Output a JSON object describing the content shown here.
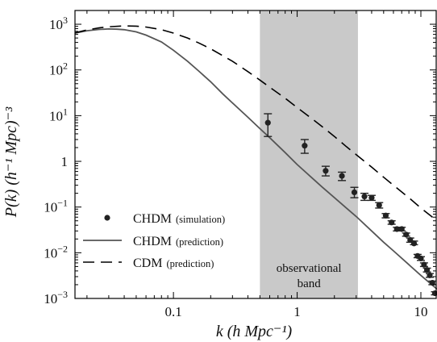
{
  "chart_data": {
    "type": "line",
    "title": "",
    "xlabel": "k (h Mpc⁻¹)",
    "ylabel": "P(k) (h⁻¹ Mpc)⁻³",
    "xscale": "log",
    "yscale": "log",
    "xlim": [
      0.016,
      13.5
    ],
    "ylim": [
      0.001,
      2000
    ],
    "x_ticks": [
      {
        "value": 0.1,
        "label": "0.1"
      },
      {
        "value": 1,
        "label": "1"
      },
      {
        "value": 10,
        "label": "10"
      }
    ],
    "y_ticks": [
      {
        "value": 0.001,
        "base": "10",
        "exp": "−3"
      },
      {
        "value": 0.01,
        "base": "10",
        "exp": "−2"
      },
      {
        "value": 0.1,
        "base": "10",
        "exp": "−1"
      },
      {
        "value": 1,
        "base": "1",
        "exp": ""
      },
      {
        "value": 10,
        "base": "10",
        "exp": "1"
      },
      {
        "value": 100,
        "base": "10",
        "exp": "2"
      },
      {
        "value": 1000,
        "base": "10",
        "exp": "3"
      }
    ],
    "shaded_band": {
      "x_from": 0.5,
      "x_to": 3.1,
      "label_lines": [
        "observational",
        "band"
      ],
      "color": "#c9c9c9"
    },
    "legend": {
      "placement": "lower-left",
      "entries": [
        {
          "name": "CHDM",
          "note": "(simulation)",
          "style": "points"
        },
        {
          "name": "CHDM",
          "note": "(prediction)",
          "style": "solid"
        },
        {
          "name": "CDM",
          "note": "(prediction)",
          "style": "dashed"
        }
      ]
    },
    "series": [
      {
        "name": "CHDM (prediction)",
        "style": "solid",
        "color": "#555555",
        "x": [
          0.016,
          0.02,
          0.025,
          0.03,
          0.035,
          0.04,
          0.05,
          0.06,
          0.08,
          0.1,
          0.13,
          0.16,
          0.2,
          0.25,
          0.3,
          0.4,
          0.5,
          0.6,
          0.8,
          1.0,
          1.3,
          1.6,
          2.0,
          2.5,
          3.0,
          4.0,
          5.0,
          6.0,
          8.0,
          10.0,
          13.5
        ],
        "y": [
          640,
          720,
          770,
          790,
          780,
          760,
          680,
          580,
          410,
          270,
          155,
          95,
          55,
          30,
          19,
          9.2,
          5.2,
          3.3,
          1.55,
          0.85,
          0.45,
          0.27,
          0.16,
          0.095,
          0.062,
          0.03,
          0.017,
          0.011,
          0.0055,
          0.0032,
          0.0016
        ]
      },
      {
        "name": "CDM (prediction)",
        "style": "dashed",
        "color": "#000000",
        "x": [
          0.016,
          0.02,
          0.025,
          0.03,
          0.04,
          0.05,
          0.06,
          0.08,
          0.1,
          0.13,
          0.16,
          0.2,
          0.25,
          0.3,
          0.4,
          0.5,
          0.6,
          0.8,
          1.0,
          1.3,
          1.6,
          2.0,
          2.5,
          3.0,
          4.0,
          5.0,
          6.0,
          8.0,
          10.0,
          13.5
        ],
        "y": [
          650,
          750,
          830,
          880,
          920,
          910,
          870,
          760,
          640,
          500,
          390,
          290,
          205,
          155,
          92,
          60,
          42,
          24,
          15,
          8.8,
          5.7,
          3.5,
          2.1,
          1.4,
          0.75,
          0.45,
          0.3,
          0.16,
          0.095,
          0.05
        ]
      },
      {
        "name": "CHDM (simulation)",
        "style": "points",
        "color": "#222222",
        "points": [
          {
            "x": 0.58,
            "y": 7.0,
            "lo": 3.5,
            "hi": 11.0
          },
          {
            "x": 1.15,
            "y": 2.2,
            "lo": 1.5,
            "hi": 3.0
          },
          {
            "x": 1.7,
            "y": 0.62,
            "lo": 0.48,
            "hi": 0.78
          },
          {
            "x": 2.3,
            "y": 0.48,
            "lo": 0.38,
            "hi": 0.58
          },
          {
            "x": 2.9,
            "y": 0.21,
            "lo": 0.16,
            "hi": 0.27
          },
          {
            "x": 3.5,
            "y": 0.17,
            "lo": 0.14,
            "hi": 0.2
          },
          {
            "x": 4.0,
            "y": 0.16,
            "lo": 0.14,
            "hi": 0.18
          },
          {
            "x": 4.6,
            "y": 0.11,
            "lo": 0.095,
            "hi": 0.125
          },
          {
            "x": 5.2,
            "y": 0.065,
            "lo": 0.058,
            "hi": 0.072
          },
          {
            "x": 5.8,
            "y": 0.046,
            "lo": 0.042,
            "hi": 0.05
          },
          {
            "x": 6.4,
            "y": 0.033,
            "lo": 0.03,
            "hi": 0.036
          },
          {
            "x": 7.0,
            "y": 0.033,
            "lo": 0.03,
            "hi": 0.036
          },
          {
            "x": 7.6,
            "y": 0.025,
            "lo": 0.023,
            "hi": 0.027
          },
          {
            "x": 8.2,
            "y": 0.019,
            "lo": 0.017,
            "hi": 0.021
          },
          {
            "x": 8.8,
            "y": 0.016,
            "lo": 0.015,
            "hi": 0.018
          },
          {
            "x": 9.4,
            "y": 0.0085,
            "lo": 0.0078,
            "hi": 0.0092
          },
          {
            "x": 10.0,
            "y": 0.0075,
            "lo": 0.0068,
            "hi": 0.0082
          },
          {
            "x": 10.6,
            "y": 0.0055,
            "lo": 0.005,
            "hi": 0.006
          },
          {
            "x": 11.2,
            "y": 0.0042,
            "lo": 0.0038,
            "hi": 0.0046
          },
          {
            "x": 11.8,
            "y": 0.0032,
            "lo": 0.0029,
            "hi": 0.0035
          },
          {
            "x": 12.4,
            "y": 0.0022,
            "lo": 0.002,
            "hi": 0.0024
          },
          {
            "x": 13.0,
            "y": 0.0013,
            "lo": 0.0012,
            "hi": 0.0014
          }
        ]
      }
    ]
  }
}
